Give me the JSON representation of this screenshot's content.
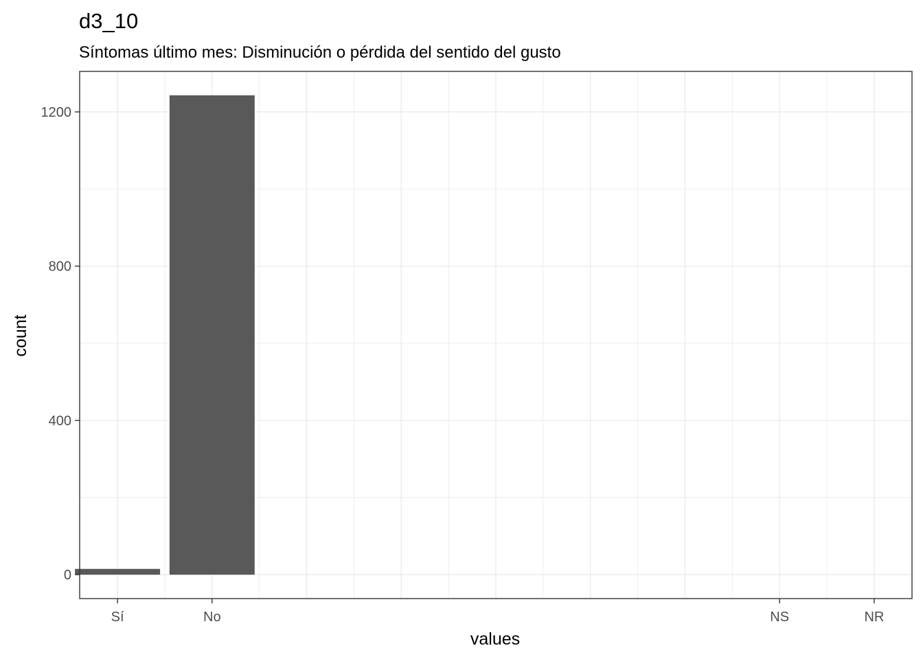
{
  "chart_data": {
    "type": "bar",
    "title": "d3_10",
    "subtitle": "Síntomas último mes: Disminución o pérdida del sentido del gusto",
    "xlabel": "values",
    "ylabel": "count",
    "categories": [
      "Sí",
      "No",
      "NS",
      "NR"
    ],
    "category_positions": [
      1,
      2,
      8,
      9
    ],
    "xlim": [
      0.6,
      9.4
    ],
    "values": [
      15,
      1243,
      0,
      0
    ],
    "ylim": [
      -62,
      1305
    ],
    "yticks": [
      0,
      400,
      800,
      1200
    ],
    "ytick_labels": [
      "0",
      "400",
      "800",
      "1200"
    ],
    "bar_width": 0.9,
    "grid": true,
    "colors": {
      "bar": "#595959",
      "panel_border": "#333333",
      "grid": "#ebebeb"
    }
  }
}
